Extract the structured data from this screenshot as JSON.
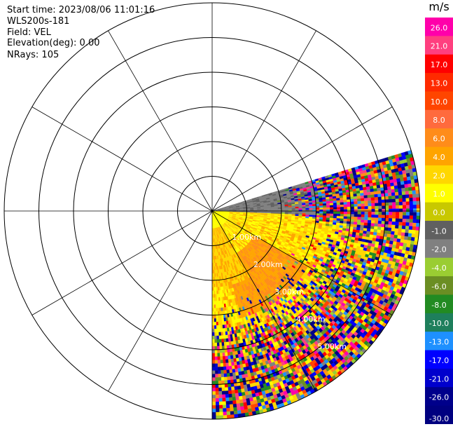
{
  "info": {
    "start_time": "Start time: 2023/08/06 11:01:16",
    "instrument": "WLS200s-181",
    "field": "Field: VEL",
    "elevation": "Elevation(deg): 0.00",
    "nrays": "NRays: 105"
  },
  "chart_data": {
    "type": "heatmap",
    "projection": "polar-ppi",
    "field": "VEL",
    "rings_km": [
      1,
      2,
      3,
      4,
      5,
      6
    ],
    "ring_labels": [
      "1.00km",
      "2.00km",
      "3.00km",
      "4.00km",
      "5.00km"
    ],
    "spokes_deg": [
      0,
      30,
      60,
      90,
      120,
      150,
      180,
      210,
      240,
      270,
      300,
      330
    ],
    "sector_azimuth_deg": [
      180,
      73
    ],
    "rays": 105,
    "colorbar": {
      "unit": "m/s",
      "tick_labels": [
        "26.0",
        "21.0",
        "17.0",
        "13.0",
        "10.0",
        "8.0",
        "6.0",
        "4.0",
        "2.0",
        "1.0",
        "0.0",
        "-1.0",
        "-2.0",
        "-4.0",
        "-6.0",
        "-8.0",
        "-10.0",
        "-13.0",
        "-17.0",
        "-21.0",
        "-26.0",
        "-30.0"
      ],
      "colors": [
        "#ff00aa",
        "#ff3f7f",
        "#ff0000",
        "#ff2a00",
        "#ff4500",
        "#ff6a3d",
        "#ff8c1a",
        "#ffa400",
        "#ffd700",
        "#ffff00",
        "#c8c800",
        "#606060",
        "#808080",
        "#9acd32",
        "#6b8e23",
        "#228b22",
        "#1e7f5c",
        "#1e90ff",
        "#0000ff",
        "#0000cd",
        "#00008b",
        "#000080"
      ]
    }
  }
}
